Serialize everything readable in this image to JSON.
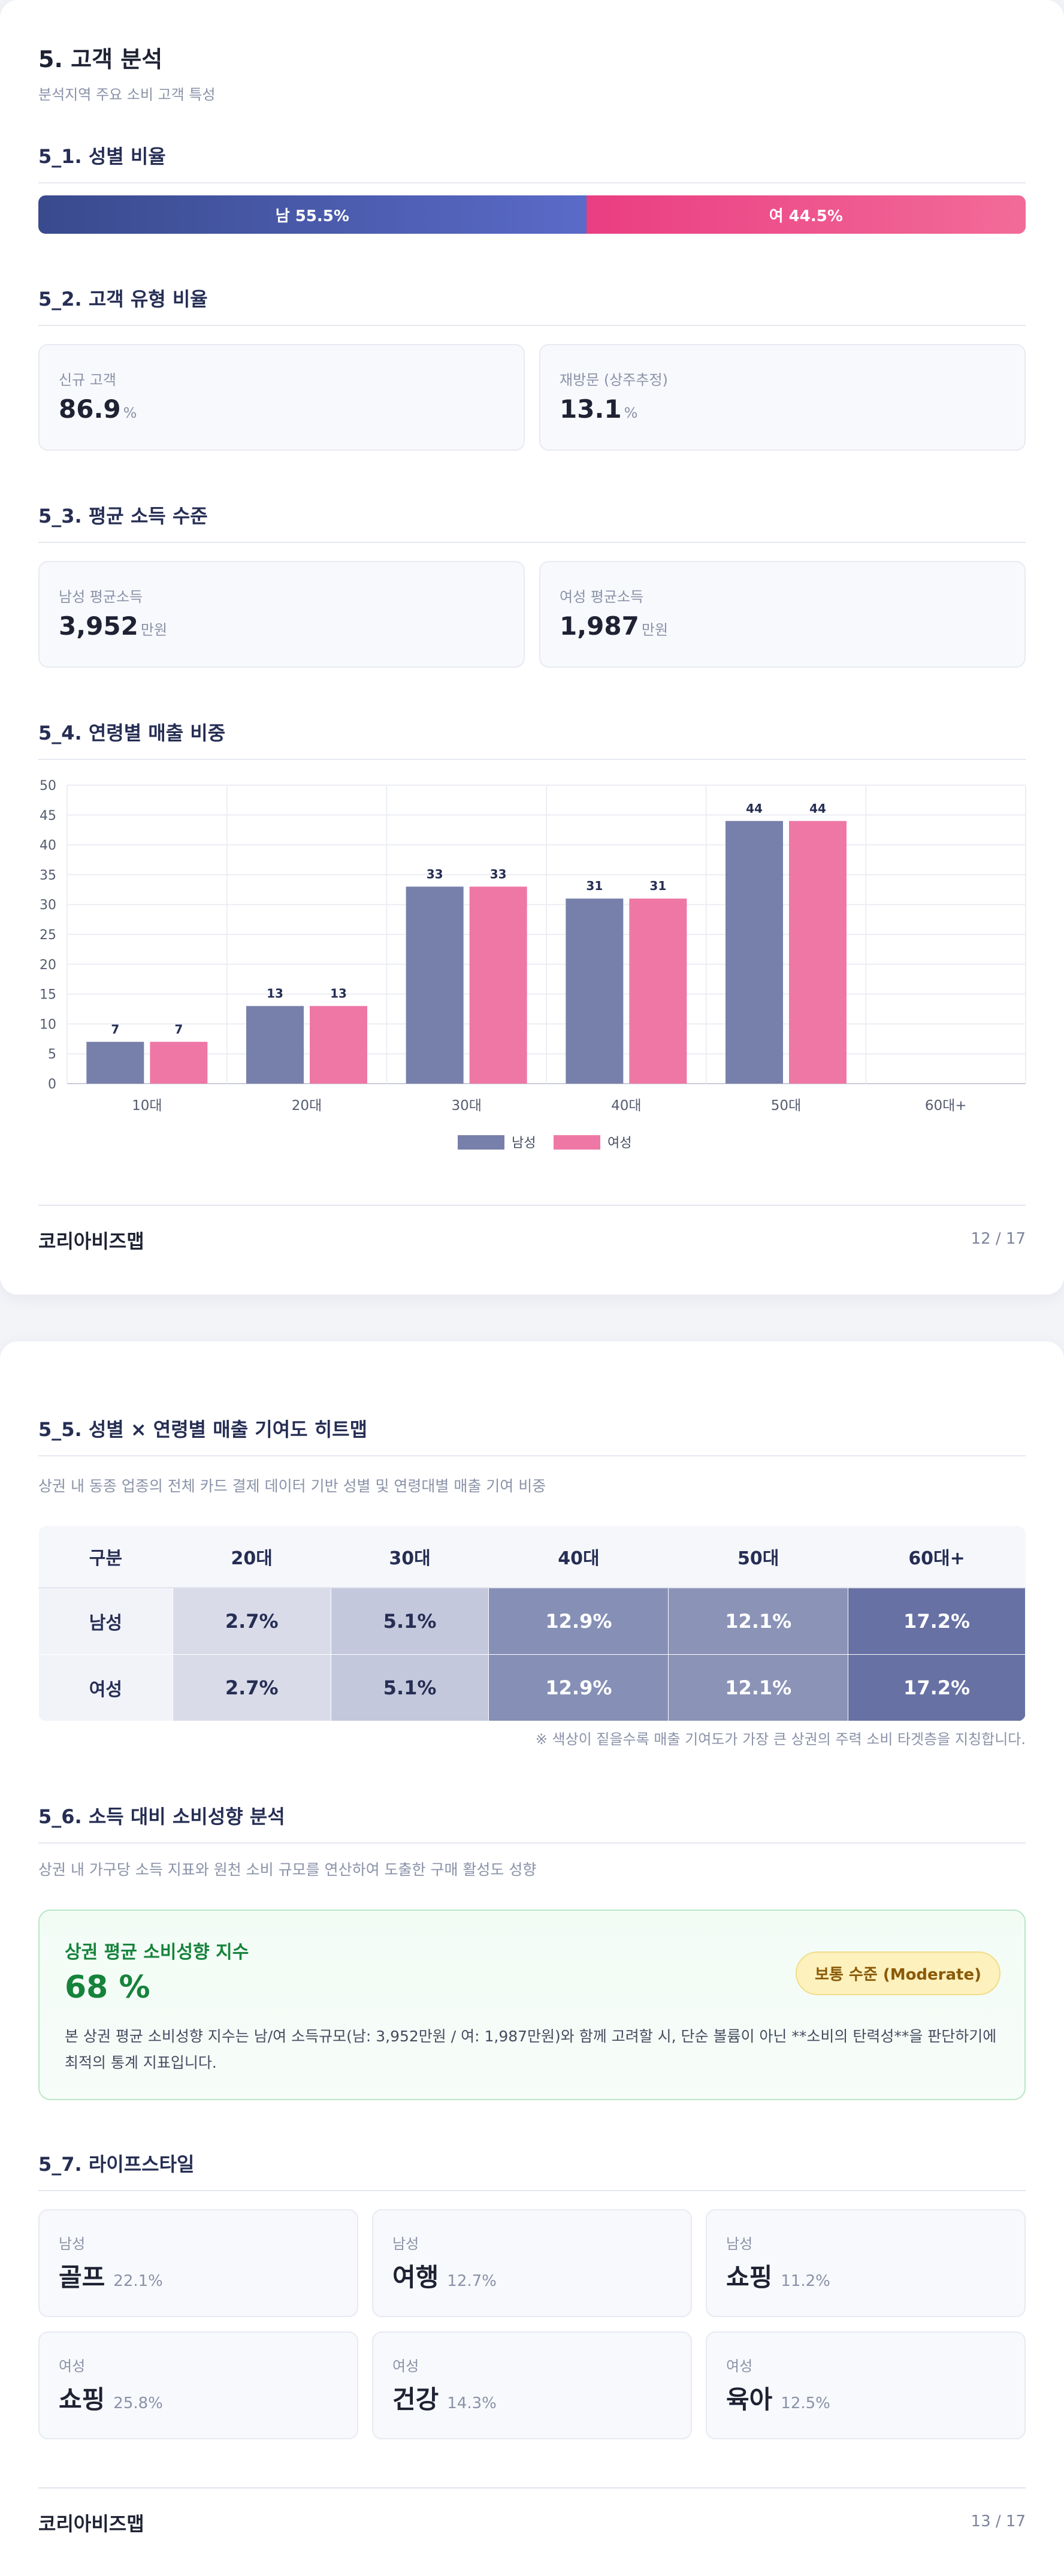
{
  "page1": {
    "title": "5. 고객 분석",
    "subtitle": "분석지역 주요 소비 고객 특성",
    "gender_section": {
      "heading": "5_1. 성별 비율",
      "male_label": "남 55.5%",
      "female_label": "여 44.5%",
      "male_share": 55.5,
      "female_share": 44.5
    },
    "customer_type": {
      "heading": "5_2. 고객 유형 비율",
      "cards": [
        {
          "label": "신규 고객",
          "value": "86.9",
          "unit": "%"
        },
        {
          "label": "재방문 (상주추정)",
          "value": "13.1",
          "unit": "%"
        }
      ]
    },
    "income": {
      "heading": "5_3. 평균 소득 수준",
      "cards": [
        {
          "label": "남성 평균소득",
          "value": "3,952",
          "unit": "만원"
        },
        {
          "label": "여성 평균소득",
          "value": "1,987",
          "unit": "만원"
        }
      ]
    },
    "age_sales": {
      "heading": "5_4. 연령별 매출 비중"
    },
    "footer": {
      "brand": "코리아비즈맵",
      "page": "12 / 17"
    }
  },
  "chart_data": {
    "type": "bar",
    "title": "",
    "categories": [
      "10대",
      "20대",
      "30대",
      "40대",
      "50대",
      "60대+"
    ],
    "series": [
      {
        "name": "남성",
        "values": [
          7,
          13,
          33,
          31,
          44,
          null
        ],
        "color": "#7780aa"
      },
      {
        "name": "여성",
        "values": [
          7,
          13,
          33,
          31,
          44,
          null
        ],
        "color": "#ee77a5"
      }
    ],
    "ylim": [
      0,
      50
    ],
    "yticks": [
      0,
      5,
      10,
      15,
      20,
      25,
      30,
      35,
      40,
      45,
      50
    ],
    "grid": true,
    "legend": "bottom-center",
    "data_labels": true
  },
  "page2": {
    "heatmap": {
      "heading": "5_5. 성별 × 연령별 매출 기여도 히트맵",
      "desc": "상권 내 동종 업종의 전체 카드 결제 데이터 기반 성별 및 연령대별 매출 기여 비중",
      "headers": [
        "구분",
        "20대",
        "30대",
        "40대",
        "50대",
        "60대+"
      ],
      "rows": [
        {
          "label": "남성",
          "cells": [
            "2.7%",
            "5.1%",
            "12.9%",
            "12.1%",
            "17.2%"
          ]
        },
        {
          "label": "여성",
          "cells": [
            "2.7%",
            "5.1%",
            "12.9%",
            "12.1%",
            "17.2%"
          ]
        }
      ],
      "cell_colors": [
        "#d9dbe9",
        "#c4c8dc",
        "#8690b6",
        "#8b93b7",
        "#6771a4"
      ],
      "cell_text_colors": [
        "#262e54",
        "#262e54",
        "#ffffff",
        "#ffffff",
        "#ffffff"
      ],
      "note": "※ 색상이 짙을수록 매출 기여도가 가장 큰 상권의 주력 소비 타겟층을 지칭합니다."
    },
    "propensity": {
      "heading": "5_6. 소득 대비 소비성향 분석",
      "desc": "상권 내 가구당 소득 지표와 원천 소비 규모를 연산하여 도출한 구매 활성도 성향",
      "box_title": "상권 평균 소비성향 지수",
      "value": "68 %",
      "badge": "보통 수준 (Moderate)",
      "text": "본 상권 평균 소비성향 지수는 남/여 소득규모(남: 3,952만원 / 여: 1,987만원)와 함께 고려할 시, 단순 볼륨이 아닌 **소비의 탄력성**을 판단하기에 최적의 통계 지표입니다."
    },
    "lifestyle": {
      "heading": "5_7. 라이프스타일",
      "cards": [
        {
          "gender": "남성",
          "name": "골프",
          "pct": "22.1%"
        },
        {
          "gender": "남성",
          "name": "여행",
          "pct": "12.7%"
        },
        {
          "gender": "남성",
          "name": "쇼핑",
          "pct": "11.2%"
        },
        {
          "gender": "여성",
          "name": "쇼핑",
          "pct": "25.8%"
        },
        {
          "gender": "여성",
          "name": "건강",
          "pct": "14.3%"
        },
        {
          "gender": "여성",
          "name": "육아",
          "pct": "12.5%"
        }
      ]
    },
    "footer": {
      "brand": "코리아비즈맵",
      "page": "13 / 17"
    }
  }
}
